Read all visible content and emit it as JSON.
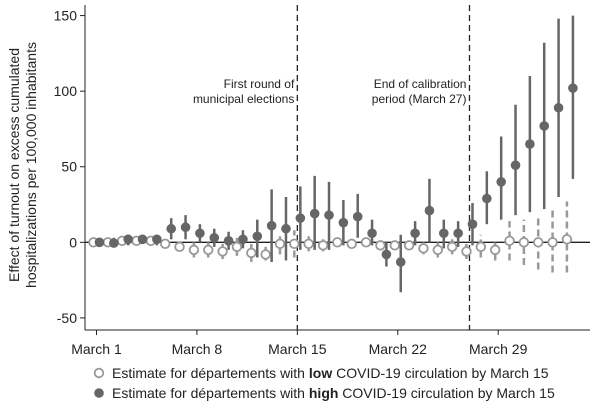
{
  "chart_data": {
    "type": "errorbar",
    "y_label": [
      "Effect of turnout on excess cumulated",
      "hospitalizations per 100,000 inhabitants"
    ],
    "annotations": [
      {
        "x": 15,
        "lines": [
          "First round of",
          "municipal elections"
        ]
      },
      {
        "x": 27,
        "lines": [
          "End of calibration",
          "period (March 27)"
        ]
      }
    ],
    "x": [
      1,
      2,
      3,
      4,
      5,
      6,
      7,
      8,
      9,
      10,
      11,
      12,
      13,
      14,
      15,
      16,
      17,
      18,
      19,
      20,
      21,
      22,
      23,
      24,
      25,
      26,
      27,
      28,
      29,
      30,
      31,
      32,
      33,
      34
    ],
    "xlim": [
      0.2,
      35.4
    ],
    "xticks": [
      {
        "value": 1,
        "label": "March 1"
      },
      {
        "value": 8,
        "label": "March 8"
      },
      {
        "value": 15,
        "label": "March 15"
      },
      {
        "value": 22,
        "label": "March 22"
      },
      {
        "value": 29,
        "label": "March 29"
      }
    ],
    "ylim": [
      -58,
      157
    ],
    "yticks": [
      -50,
      0,
      50,
      100,
      150
    ],
    "series": [
      {
        "name_parts": [
          "Estimate for départements with ",
          "low",
          " COVID-19 circulation by March 15"
        ],
        "color": "#999999",
        "hollow": true,
        "dashed": true,
        "values": [
          0,
          0,
          1,
          1,
          1,
          -1,
          -3,
          -5,
          -5,
          -6,
          -3,
          -7,
          -8,
          -1,
          -1,
          -1,
          -2,
          0,
          -1,
          0,
          -2,
          -2,
          -2,
          -4,
          -5,
          -3,
          -6,
          -3,
          -5,
          1,
          0,
          0,
          0,
          2
        ],
        "lower": [
          0,
          -1,
          -2,
          -1,
          -1,
          -3,
          -6,
          -10,
          -10,
          -11,
          -9,
          -13,
          -12,
          -8,
          -10,
          -6,
          -6,
          -3,
          -4,
          -3,
          -5,
          -5,
          -5,
          -8,
          -10,
          -8,
          -11,
          -10,
          -12,
          -12,
          -15,
          -18,
          -20,
          -20
        ],
        "upper": [
          0,
          1,
          3,
          3,
          3,
          1,
          0,
          0,
          0,
          -1,
          3,
          -1,
          -3,
          5,
          8,
          4,
          2,
          3,
          2,
          3,
          1,
          1,
          1,
          0,
          0,
          2,
          -1,
          5,
          2,
          14,
          15,
          18,
          22,
          27
        ]
      },
      {
        "name_parts": [
          "Estimate for départements with ",
          "high",
          " COVID-19 circulation by March 15"
        ],
        "color": "#666666",
        "hollow": false,
        "dashed": false,
        "values": [
          0,
          -0.5,
          2,
          2,
          2,
          9,
          10,
          6,
          3,
          1,
          2,
          4,
          11,
          9,
          16,
          19,
          18,
          13,
          17,
          6,
          -8,
          -13,
          6,
          21,
          6,
          6,
          12,
          29,
          40,
          51,
          65,
          77,
          89,
          102
        ],
        "lower": [
          -1,
          -3,
          -2,
          -1,
          -2,
          2,
          2,
          0,
          -3,
          -5,
          -4,
          -10,
          -13,
          -12,
          -5,
          -5,
          -5,
          -2,
          3,
          -2,
          -16,
          -33,
          -2,
          0,
          -4,
          -3,
          -2,
          12,
          15,
          18,
          20,
          22,
          30,
          42
        ],
        "upper": [
          1,
          3,
          5,
          5,
          5,
          16,
          18,
          12,
          9,
          7,
          8,
          15,
          35,
          30,
          37,
          44,
          40,
          28,
          32,
          15,
          0,
          5,
          14,
          42,
          15,
          14,
          26,
          47,
          70,
          91,
          110,
          132,
          148,
          150
        ]
      }
    ]
  }
}
